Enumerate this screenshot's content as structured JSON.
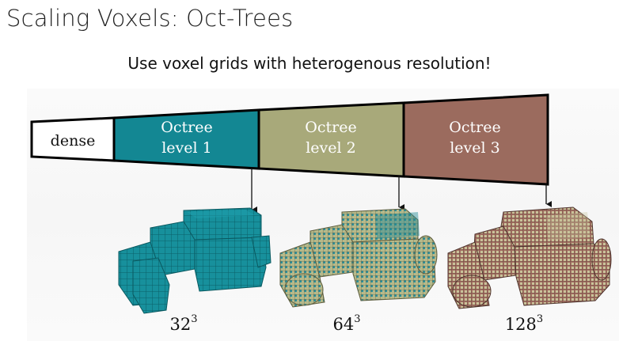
{
  "slide": {
    "title": "Scaling Voxels: Oct-Trees",
    "subtitle": "Use voxel grids with heterogenous resolution!"
  },
  "wedge": {
    "dense_label": "dense",
    "levels": [
      {
        "line1": "Octree",
        "line2": "level 1",
        "color": "#138793"
      },
      {
        "line1": "Octree",
        "line2": "level 2",
        "color": "#a8a97a"
      },
      {
        "line1": "Octree",
        "line2": "level 3",
        "color": "#9b6b5e"
      }
    ]
  },
  "resolutions": [
    {
      "base": "32",
      "exp": "3"
    },
    {
      "base": "64",
      "exp": "3"
    },
    {
      "base": "128",
      "exp": "3"
    }
  ],
  "colors": {
    "teal": "#138793",
    "olive": "#a8a97a",
    "brown": "#9b6b5e"
  }
}
